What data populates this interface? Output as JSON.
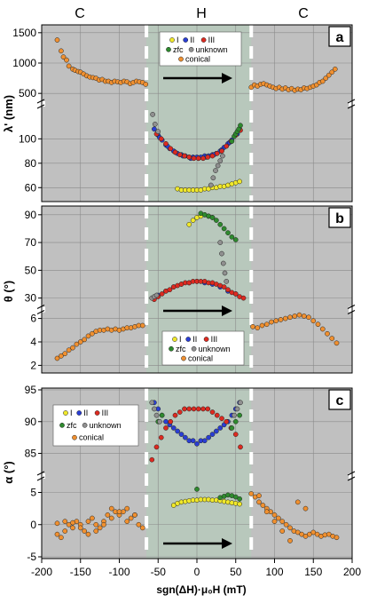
{
  "figure": {
    "top_labels": [
      "C",
      "H",
      "C"
    ],
    "xlabel": "sgn(ΔH)·μ₀H (mT)",
    "xticks": [
      -200,
      -150,
      -100,
      -50,
      0,
      50,
      100,
      150,
      200
    ],
    "xlim": [
      -200,
      200
    ],
    "h_region": [
      -65,
      70
    ],
    "colors": {
      "background": "#c0c0c0",
      "h_region": "#b8c8bc",
      "grid": "#8a8a8a",
      "dashes": "#ffffff",
      "I": "#f0e82a",
      "II": "#2a3ed4",
      "III": "#dd2a20",
      "zfc": "#2e8a2e",
      "unknown": "#909090",
      "conical": "#f09030"
    }
  },
  "chart_data": [
    {
      "type": "scatter",
      "panel": "a",
      "ylabel": "λ' (nm)",
      "broken_axis": true,
      "upper": {
        "ylim": [
          400,
          1600
        ],
        "yticks": [
          500,
          1000,
          1500
        ]
      },
      "lower": {
        "ylim": [
          50,
          125
        ],
        "yticks": [
          60,
          80,
          100
        ]
      },
      "legend": {
        "entries": [
          "I",
          "II",
          "III",
          "zfc",
          "unknown",
          "conical"
        ],
        "placement": "top-center"
      },
      "arrow": "left-to-right",
      "series": [
        {
          "name": "conical",
          "segment": "upper",
          "x": [
            -180,
            -175,
            -172,
            -168,
            -165,
            -160,
            -157,
            -153,
            -150,
            -146,
            -142,
            -138,
            -134,
            -130,
            -126,
            -122,
            -118,
            -114,
            -110,
            -106,
            -102,
            -98,
            -94,
            -90,
            -86,
            -82,
            -78,
            -74,
            -70,
            -66,
            70,
            74,
            78,
            82,
            86,
            90,
            94,
            98,
            102,
            106,
            110,
            114,
            118,
            122,
            126,
            130,
            134,
            138,
            142,
            146,
            150,
            154,
            158,
            162,
            166,
            170,
            174,
            178
          ],
          "y": [
            1380,
            1200,
            1100,
            1050,
            950,
            900,
            880,
            860,
            850,
            820,
            790,
            770,
            760,
            750,
            720,
            730,
            700,
            700,
            680,
            700,
            690,
            680,
            700,
            690,
            660,
            680,
            700,
            690,
            680,
            650,
            600,
            640,
            620,
            650,
            660,
            640,
            620,
            600,
            580,
            600,
            570,
            590,
            560,
            580,
            550,
            570,
            560,
            590,
            580,
            600,
            620,
            640,
            680,
            700,
            750,
            800,
            850,
            900
          ]
        },
        {
          "name": "II",
          "segment": "lower",
          "x": [
            -55,
            -50,
            -45,
            -40,
            -35,
            -30,
            -25,
            -20,
            -15,
            -10,
            -5,
            0,
            5,
            10,
            15,
            20,
            25,
            30,
            35,
            40,
            45,
            50,
            55,
            -48,
            -38,
            -28,
            -18,
            -8,
            2,
            12,
            22,
            32,
            42,
            52
          ],
          "y": [
            108,
            103,
            99,
            95,
            92,
            90,
            88,
            87,
            86,
            85,
            85,
            85,
            85,
            86,
            86,
            87,
            88,
            90,
            93,
            96,
            99,
            104,
            108,
            101,
            94,
            89,
            86,
            84,
            84,
            85,
            87,
            91,
            97,
            104
          ]
        },
        {
          "name": "III",
          "segment": "lower",
          "x": [
            -52,
            -46,
            -40,
            -34,
            -28,
            -22,
            -16,
            -10,
            -4,
            2,
            8,
            14,
            20,
            26,
            32,
            38,
            44,
            50,
            56
          ],
          "y": [
            104,
            100,
            96,
            92,
            89,
            87,
            86,
            85,
            84,
            84,
            84,
            85,
            86,
            88,
            90,
            94,
            98,
            103,
            107
          ]
        },
        {
          "name": "I",
          "segment": "lower",
          "x": [
            -25,
            -20,
            -15,
            -10,
            -5,
            0,
            5,
            10,
            15,
            20,
            25,
            30,
            35,
            40,
            45,
            50,
            55
          ],
          "y": [
            59,
            58,
            58,
            58,
            58,
            58,
            58,
            59,
            59,
            60,
            60,
            61,
            61,
            62,
            63,
            64,
            65
          ]
        },
        {
          "name": "zfc",
          "segment": "lower",
          "x": [
            45,
            48,
            50,
            52,
            54,
            56
          ],
          "y": [
            98,
            102,
            104,
            106,
            108,
            111
          ]
        },
        {
          "name": "unknown",
          "segment": "lower",
          "x": [
            -57,
            -54,
            -50,
            18,
            21,
            24,
            27,
            30,
            33
          ],
          "y": [
            120,
            112,
            106,
            62,
            68,
            74,
            78,
            82,
            86
          ]
        }
      ]
    },
    {
      "type": "scatter",
      "panel": "b",
      "ylabel": "θ (°)",
      "broken_axis": true,
      "upper": {
        "ylim": [
          24,
          95
        ],
        "yticks": [
          30,
          50,
          70,
          90
        ]
      },
      "lower": {
        "ylim": [
          1.5,
          6.5
        ],
        "yticks": [
          2,
          4,
          6
        ]
      },
      "legend": {
        "entries": [
          "I",
          "II",
          "III",
          "zfc",
          "unknown",
          "conical"
        ],
        "placement": "bottom-center"
      },
      "arrow": "left-to-right",
      "series": [
        {
          "name": "I",
          "segment": "upper",
          "x": [
            -10,
            -5,
            0,
            5,
            10,
            15,
            20
          ],
          "y": [
            83,
            86,
            88,
            89,
            90,
            89,
            88
          ]
        },
        {
          "name": "zfc",
          "segment": "upper",
          "x": [
            5,
            10,
            15,
            20,
            25,
            30,
            35,
            40,
            45,
            50
          ],
          "y": [
            91,
            90,
            89,
            88,
            86,
            83,
            80,
            77,
            74,
            72
          ]
        },
        {
          "name": "II",
          "segment": "upper",
          "x": [
            -50,
            -40,
            -30,
            -20,
            -10,
            0,
            10,
            20,
            30,
            40,
            50
          ],
          "y": [
            32,
            35,
            38,
            40,
            41,
            42,
            41,
            40,
            38,
            35,
            33
          ]
        },
        {
          "name": "III",
          "segment": "upper",
          "x": [
            -55,
            -50,
            -45,
            -40,
            -35,
            -30,
            -25,
            -20,
            -15,
            -10,
            -5,
            0,
            5,
            10,
            15,
            20,
            25,
            30,
            35,
            40,
            45,
            50,
            55,
            60
          ],
          "y": [
            29,
            31,
            33,
            35,
            36,
            38,
            39,
            40,
            41,
            41,
            42,
            42,
            42,
            42,
            41,
            41,
            40,
            39,
            38,
            36,
            34,
            33,
            31,
            30
          ]
        },
        {
          "name": "unknown",
          "segment": "upper",
          "x": [
            -58,
            -55,
            -52,
            30,
            32,
            34,
            36,
            38
          ],
          "y": [
            30,
            31,
            32,
            70,
            62,
            55,
            48,
            42
          ]
        },
        {
          "name": "conical",
          "segment": "lower",
          "x": [
            -180,
            -175,
            -170,
            -165,
            -160,
            -155,
            -150,
            -145,
            -140,
            -135,
            -130,
            -125,
            -120,
            -115,
            -110,
            -105,
            -100,
            -95,
            -90,
            -85,
            -80,
            -75,
            -70,
            72,
            78,
            84,
            90,
            96,
            102,
            108,
            114,
            120,
            126,
            132,
            138,
            144,
            150,
            156,
            162,
            168,
            174,
            180
          ],
          "y": [
            2.6,
            2.8,
            3.0,
            3.3,
            3.5,
            3.8,
            4.0,
            4.2,
            4.5,
            4.7,
            4.9,
            5.0,
            5.0,
            5.1,
            5.0,
            5.1,
            5.0,
            5.1,
            5.2,
            5.2,
            5.3,
            5.4,
            5.4,
            5.3,
            5.2,
            5.4,
            5.5,
            5.7,
            5.8,
            5.9,
            6.0,
            6.1,
            6.2,
            6.3,
            6.2,
            6.1,
            5.8,
            5.5,
            5.1,
            4.7,
            4.3,
            3.9
          ]
        }
      ]
    },
    {
      "type": "scatter",
      "panel": "c",
      "ylabel": "α (°)",
      "broken_axis": true,
      "upper": {
        "ylim": [
          82,
          95
        ],
        "yticks": [
          85,
          90,
          95
        ]
      },
      "lower": {
        "ylim": [
          -5,
          7
        ],
        "yticks": [
          -5,
          0,
          5
        ]
      },
      "legend": {
        "entries": [
          "I",
          "II",
          "III",
          "zfc",
          "unknown",
          "conical"
        ],
        "placement": "top-left"
      },
      "arrow": "left-to-right",
      "series": [
        {
          "name": "II",
          "segment": "upper",
          "x": [
            -55,
            -50,
            -45,
            -40,
            -35,
            -30,
            -25,
            -20,
            -15,
            -10,
            -5,
            0,
            5,
            10,
            15,
            20,
            25,
            30,
            35,
            40,
            45,
            50,
            55
          ],
          "y": [
            93,
            92,
            91,
            90,
            89.5,
            89,
            88.5,
            88,
            87.5,
            87,
            87,
            86.5,
            87,
            87,
            87.5,
            88,
            88.5,
            89,
            89.5,
            90,
            91,
            92,
            93
          ]
        },
        {
          "name": "III",
          "segment": "upper",
          "x": [
            -58,
            -52,
            -46,
            -40,
            -34,
            -28,
            -22,
            -16,
            -10,
            -4,
            2,
            8,
            14,
            20,
            26,
            32,
            38,
            44,
            50,
            56
          ],
          "y": [
            84,
            86,
            87.5,
            89,
            90,
            91,
            91.5,
            92,
            92,
            92,
            92,
            92,
            92,
            91.5,
            91,
            90.5,
            90,
            89,
            88,
            86
          ]
        },
        {
          "name": "zfc",
          "segment": "upper",
          "x": [
            -50,
            -45,
            45,
            50,
            55
          ],
          "y": [
            90,
            91,
            89,
            90,
            91
          ]
        },
        {
          "name": "unknown",
          "segment": "upper",
          "x": [
            -58,
            -55,
            -52,
            -48,
            48,
            52,
            56
          ],
          "y": [
            93,
            92,
            91,
            90,
            91,
            92,
            93
          ]
        },
        {
          "name": "I",
          "segment": "lower",
          "x": [
            -30,
            -25,
            -20,
            -15,
            -10,
            -5,
            0,
            5,
            10,
            15,
            20,
            25,
            30,
            35,
            40,
            45,
            50,
            55
          ],
          "y": [
            3,
            3.3,
            3.5,
            3.6,
            3.7,
            3.8,
            3.8,
            3.9,
            3.9,
            3.9,
            3.8,
            3.8,
            3.7,
            3.6,
            3.5,
            3.4,
            3.3,
            3.2
          ]
        },
        {
          "name": "zfc",
          "segment": "lower",
          "x": [
            0,
            30,
            35,
            40,
            45,
            50,
            55
          ],
          "y": [
            5.5,
            4.2,
            4.4,
            4.6,
            4.5,
            4.3,
            4.0
          ]
        },
        {
          "name": "conical",
          "segment": "lower",
          "x": [
            -180,
            -175,
            -170,
            -165,
            -160,
            -155,
            -150,
            -145,
            -140,
            -135,
            -130,
            -125,
            -120,
            -115,
            -110,
            -105,
            -100,
            -95,
            -90,
            -85,
            -80,
            -75,
            -70,
            -180,
            -170,
            -160,
            -150,
            -140,
            -130,
            -120,
            -110,
            -100,
            -90,
            -80,
            70,
            75,
            80,
            85,
            90,
            95,
            100,
            105,
            110,
            115,
            120,
            125,
            130,
            135,
            140,
            145,
            150,
            155,
            160,
            165,
            170,
            175,
            180,
            80,
            90,
            100,
            110,
            120,
            130,
            140
          ],
          "y": [
            -1.5,
            -2,
            -1,
            0,
            -0.5,
            0.5,
            0,
            -1,
            0.5,
            1,
            0,
            -0.5,
            0.5,
            1.5,
            2.5,
            2,
            1.5,
            2,
            0.5,
            1,
            1.5,
            0,
            -0.5,
            0.2,
            0.5,
            0.3,
            -0.5,
            -1.5,
            -1,
            0,
            1,
            2,
            2.5,
            1.5,
            4.8,
            4.3,
            3.5,
            3,
            2.5,
            2,
            1.5,
            1,
            0.5,
            0,
            -0.5,
            -1,
            -1.2,
            -1.5,
            -1.8,
            -1.5,
            -1.2,
            -1.5,
            -1.8,
            -1.6,
            -1.5,
            -1.8,
            -2,
            4.5,
            2,
            0.5,
            -1,
            -2.5,
            3.5,
            2.5
          ]
        }
      ]
    }
  ]
}
